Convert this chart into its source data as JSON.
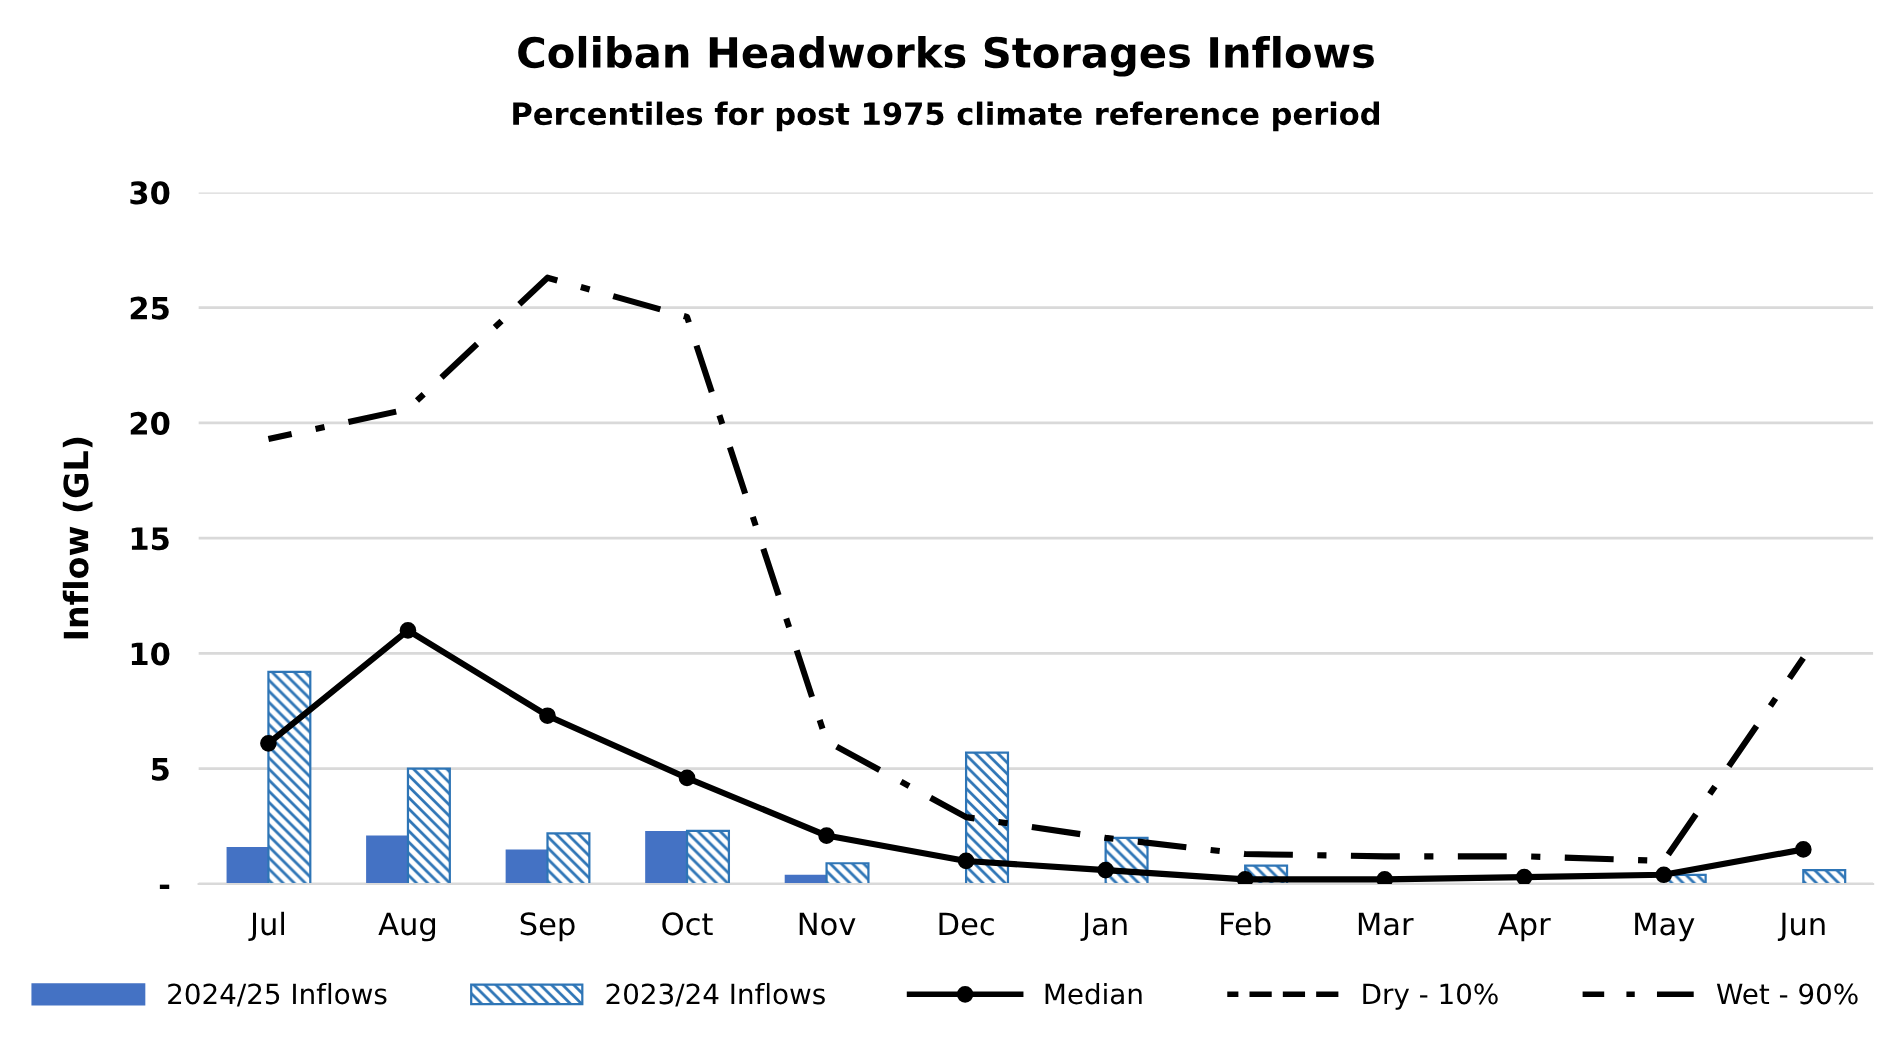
{
  "chart_data": {
    "type": "bar",
    "title": "Coliban Headworks Storages Inflows",
    "subtitle": "Percentiles for post 1975 climate reference period",
    "ylabel": "Inflow (GL)",
    "categories": [
      "Jul",
      "Aug",
      "Sep",
      "Oct",
      "Nov",
      "Dec",
      "Jan",
      "Feb",
      "Mar",
      "Apr",
      "May",
      "Jun"
    ],
    "series": [
      {
        "name": "2024/25 Inflows",
        "color": "#4472c4",
        "values": [
          1.6,
          2.1,
          1.5,
          2.3,
          0.4,
          null,
          null,
          null,
          null,
          null,
          null,
          null
        ]
      },
      {
        "name": "2023/24 Inflows",
        "color": "#2e75b6",
        "values": [
          9.2,
          5.0,
          2.2,
          2.3,
          0.9,
          5.7,
          2.0,
          0.8,
          null,
          null,
          0.4,
          0.6
        ]
      },
      {
        "name": "Median",
        "type": "line",
        "color": "#000000",
        "marker": "circle",
        "line_style": "solid",
        "values": [
          6.1,
          11.0,
          7.3,
          4.6,
          2.1,
          1.0,
          0.6,
          0.2,
          0.2,
          0.3,
          0.4,
          1.5
        ]
      },
      {
        "name": "Dry - 10%",
        "type": "line",
        "color": "#000000",
        "marker": "none",
        "line_style": "dashed",
        "values": [
          null,
          null,
          null,
          null,
          null,
          null,
          null,
          null,
          null,
          null,
          null,
          null
        ]
      },
      {
        "name": "Wet - 90%",
        "type": "line",
        "color": "#000000",
        "marker": "none",
        "line_style": "dashdot",
        "values": [
          19.3,
          20.6,
          26.3,
          24.6,
          6.2,
          2.9,
          2.0,
          1.3,
          1.2,
          1.2,
          1.0,
          9.8
        ]
      }
    ],
    "ylim": [
      0,
      30
    ],
    "yticks": [
      {
        "value": 0,
        "label": "-"
      },
      5,
      10,
      15,
      20,
      25,
      30
    ],
    "grid": "y",
    "legend": "bottom"
  }
}
